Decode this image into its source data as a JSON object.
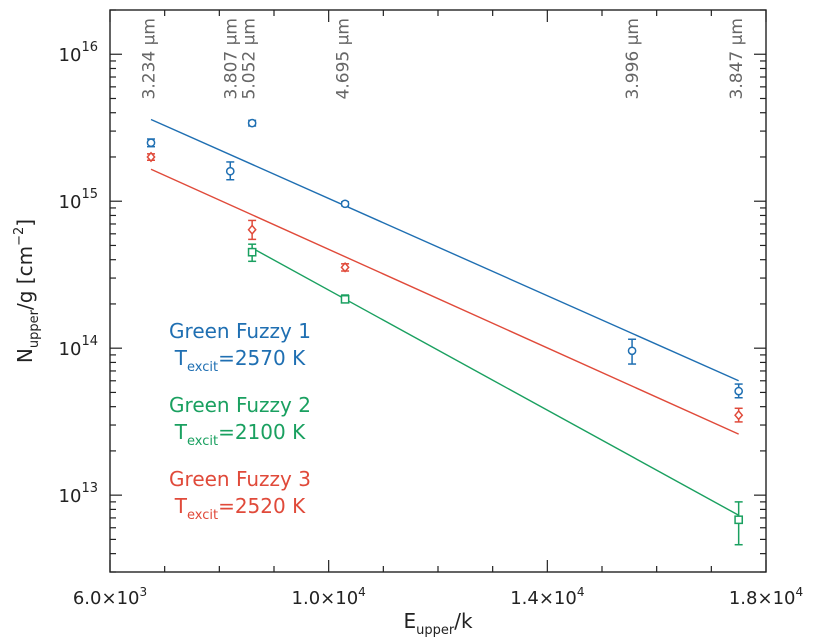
{
  "chart_data": {
    "type": "scatter",
    "title": "",
    "xlabel": "E",
    "xlabel_sub": "upper",
    "xlabel_rest": "/k",
    "ylabel": "N",
    "ylabel_sub": "upper",
    "ylabel_rest": "/g [cm",
    "ylabel_exp": "−2",
    "ylabel_close": "]",
    "xlim": [
      6000,
      18000
    ],
    "ylim": [
      3000000000000.0,
      2e+16
    ],
    "yscale": "log",
    "x_ticks": [
      {
        "value": 6000,
        "mant": "6.0×10",
        "exp": "3"
      },
      {
        "value": 10000,
        "mant": "1.0×10",
        "exp": "4"
      },
      {
        "value": 14000,
        "mant": "1.4×10",
        "exp": "4"
      },
      {
        "value": 18000,
        "mant": "1.8×10",
        "exp": "4"
      }
    ],
    "y_ticks": [
      {
        "value": 10000000000000.0,
        "mant": "10",
        "exp": "13"
      },
      {
        "value": 100000000000000.0,
        "mant": "10",
        "exp": "14"
      },
      {
        "value": 1000000000000000.0,
        "mant": "10",
        "exp": "15"
      },
      {
        "value": 1e+16,
        "mant": "10",
        "exp": "16"
      }
    ],
    "wavelength_labels": [
      {
        "x": 6700,
        "text": "3.234 µm"
      },
      {
        "x": 8200,
        "text": "3.807 µm"
      },
      {
        "x": 8530,
        "text": "5.052 µm"
      },
      {
        "x": 10250,
        "text": "4.695 µm"
      },
      {
        "x": 15550,
        "text": "3.996 µm"
      },
      {
        "x": 17450,
        "text": "3.847 µm"
      }
    ],
    "series": [
      {
        "name": "Green Fuzzy 1",
        "texcit_label": "T",
        "texcit_sub": "excit",
        "texcit_value": "=2570 K",
        "color": "#1f6fb2",
        "marker": "circle",
        "points": [
          {
            "x": 6750,
            "y": 2500000000000000.0,
            "ylo": 2350000000000000.0,
            "yhi": 2650000000000000.0
          },
          {
            "x": 8200,
            "y": 1600000000000000.0,
            "ylo": 1400000000000000.0,
            "yhi": 1850000000000000.0
          },
          {
            "x": 8600,
            "y": 3400000000000000.0,
            "ylo": 3250000000000000.0,
            "yhi": 3550000000000000.0
          },
          {
            "x": 10300,
            "y": 960000000000000.0,
            "ylo": 930000000000000.0,
            "yhi": 990000000000000.0
          },
          {
            "x": 15550,
            "y": 96000000000000.0,
            "ylo": 78000000000000.0,
            "yhi": 115000000000000.0
          },
          {
            "x": 17500,
            "y": 51000000000000.0,
            "ylo": 46000000000000.0,
            "yhi": 57000000000000.0
          }
        ],
        "fit": [
          [
            6750,
            3600000000000000.0
          ],
          [
            17500,
            60000000000000.0
          ]
        ]
      },
      {
        "name": "Green Fuzzy 2",
        "texcit_label": "T",
        "texcit_sub": "excit",
        "texcit_value": "=2100 K",
        "color": "#1aa060",
        "marker": "square",
        "points": [
          {
            "x": 8600,
            "y": 450000000000000.0,
            "ylo": 390000000000000.0,
            "yhi": 510000000000000.0
          },
          {
            "x": 10300,
            "y": 215000000000000.0,
            "ylo": 205000000000000.0,
            "yhi": 230000000000000.0
          },
          {
            "x": 17500,
            "y": 6800000000000.0,
            "ylo": 4600000000000.0,
            "yhi": 9000000000000.0
          }
        ],
        "fit": [
          [
            8600,
            480000000000000.0
          ],
          [
            17500,
            7300000000000.0
          ]
        ]
      },
      {
        "name": "Green Fuzzy 3",
        "texcit_label": "T",
        "texcit_sub": "excit",
        "texcit_value": "=2520 K",
        "color": "#e04a3a",
        "marker": "diamond",
        "points": [
          {
            "x": 6750,
            "y": 2000000000000000.0,
            "ylo": 1900000000000000.0,
            "yhi": 2100000000000000.0
          },
          {
            "x": 8600,
            "y": 640000000000000.0,
            "ylo": 550000000000000.0,
            "yhi": 740000000000000.0
          },
          {
            "x": 10300,
            "y": 355000000000000.0,
            "ylo": 335000000000000.0,
            "yhi": 375000000000000.0
          },
          {
            "x": 17500,
            "y": 35000000000000.0,
            "ylo": 31500000000000.0,
            "yhi": 39000000000000.0
          }
        ],
        "fit": [
          [
            6750,
            1650000000000000.0
          ],
          [
            17500,
            26000000000000.0
          ]
        ]
      }
    ],
    "grid": false,
    "legend": "lower-left"
  }
}
